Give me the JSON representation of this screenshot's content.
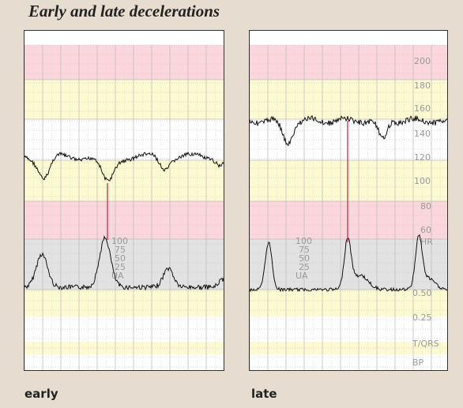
{
  "title": "Early and late decelerations",
  "captions": {
    "early": "early",
    "late": "late"
  },
  "colors": {
    "pink": "#fbd6dc",
    "yellow": "#fdfad2",
    "grey": "#e2e2e2",
    "white": "#ffffff",
    "grid": "#bbbbbb",
    "minorGrid": "#d8d8d8",
    "trace": "#111111",
    "marker": "#c8203a",
    "label": "#9a9a9a"
  },
  "scale": {
    "hr_labels": [
      "200",
      "180",
      "160",
      "140",
      "120",
      "100",
      "80",
      "60",
      "HR"
    ],
    "ua_labels": [
      "100",
      "75",
      "50",
      "25",
      "UA"
    ],
    "lower_labels": [
      "0.50",
      "0.25",
      "T/QRS",
      "BP"
    ]
  },
  "panels": [
    {
      "key": "early",
      "show_right_scale": false
    },
    {
      "key": "late",
      "show_right_scale": true
    }
  ]
}
